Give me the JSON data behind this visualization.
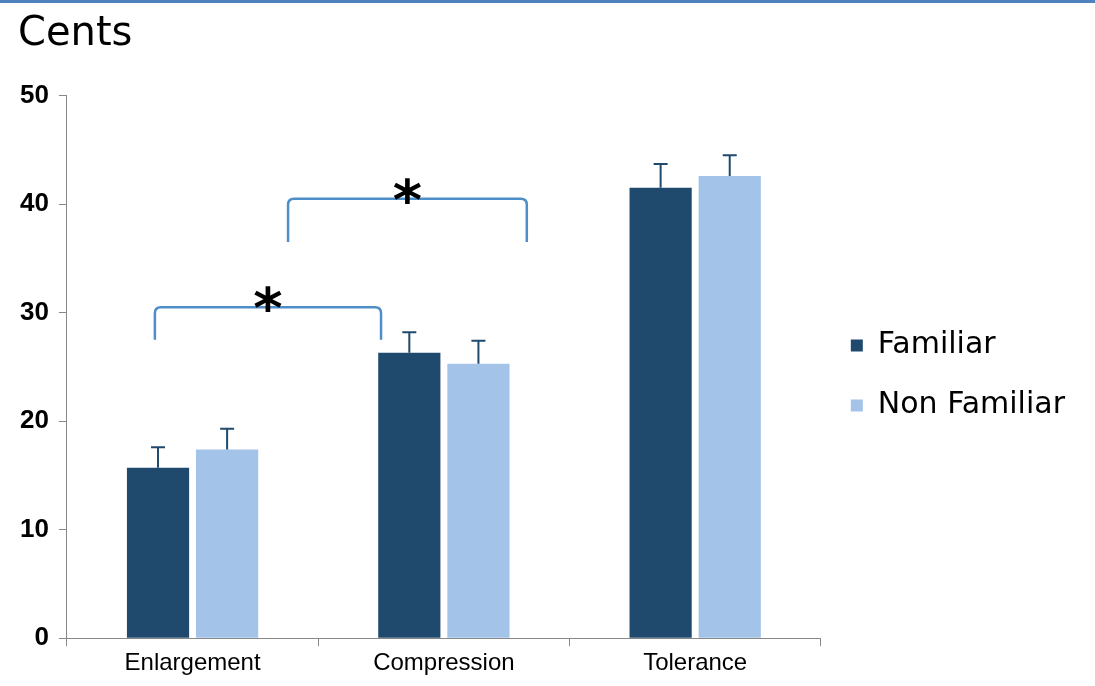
{
  "chart_data": {
    "type": "bar",
    "title": "Cents",
    "categories": [
      "Enlargement",
      "Compression",
      "Tolerance"
    ],
    "series": [
      {
        "name": "Familiar",
        "color": "#1f4a6e",
        "values": [
          15.7,
          26.3,
          41.5
        ],
        "errors": [
          [
            15.7,
            17.6
          ],
          [
            26.3,
            28.2
          ],
          [
            41.5,
            43.7
          ]
        ]
      },
      {
        "name": "Non Familiar",
        "color": "#a3c4e8",
        "values": [
          17.4,
          25.3,
          42.6
        ],
        "errors": [
          [
            17.4,
            19.3
          ],
          [
            25.3,
            27.4
          ],
          [
            42.6,
            44.5
          ]
        ]
      }
    ],
    "ylim": [
      0,
      50
    ],
    "yticks": [
      0,
      10,
      20,
      30,
      40,
      50
    ],
    "grid": false,
    "legend": "right",
    "annotations": [
      "*",
      "*"
    ]
  }
}
